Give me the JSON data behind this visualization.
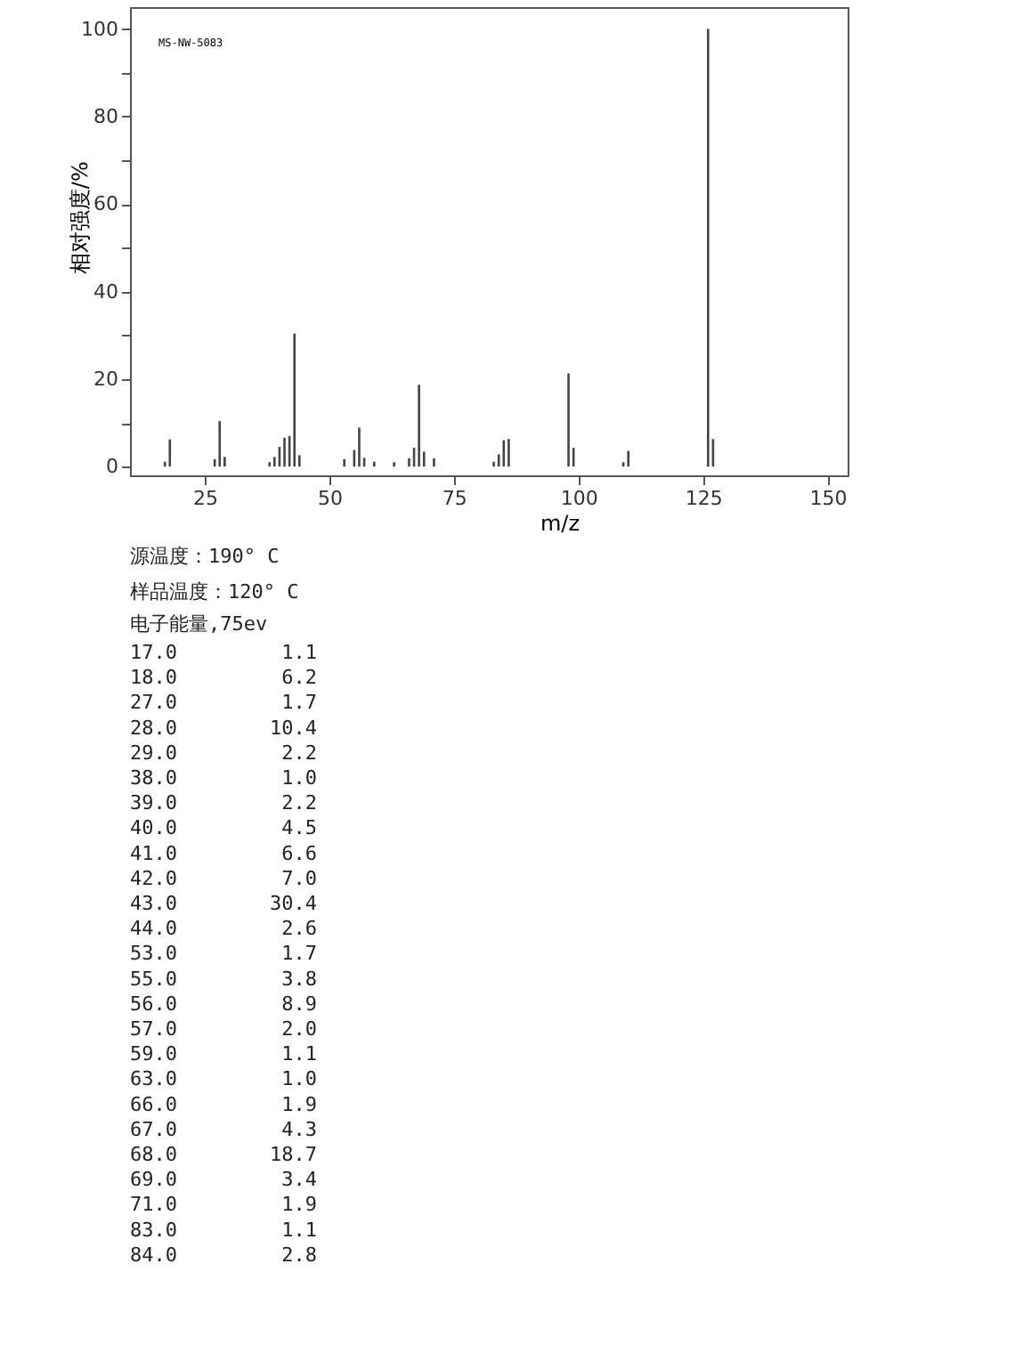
{
  "chart_data": {
    "type": "bar",
    "xlabel": "m/z",
    "ylabel": "相对强度/%",
    "x": [
      17,
      18,
      27,
      28,
      29,
      38,
      39,
      40,
      41,
      42,
      43,
      44,
      53,
      55,
      56,
      57,
      59,
      63,
      66,
      67,
      68,
      69,
      71,
      83,
      84,
      85,
      86,
      98,
      99,
      109,
      110,
      126,
      127
    ],
    "values": [
      1.1,
      6.2,
      1.7,
      10.4,
      2.2,
      1.0,
      2.2,
      4.5,
      6.6,
      7.0,
      30.4,
      2.6,
      1.7,
      3.8,
      8.9,
      2.0,
      1.1,
      1.0,
      1.9,
      4.3,
      18.7,
      3.4,
      1.9,
      1.1,
      2.8,
      6,
      6.3,
      21.3,
      4.3,
      1,
      3.6,
      100,
      6.3
    ],
    "color": "#444444",
    "xlim": [
      10,
      154
    ],
    "xticks": [
      25,
      50,
      75,
      100,
      125,
      150
    ],
    "ylim": [
      -2,
      105
    ],
    "yticks": [
      0,
      {
        "value": 10,
        "label": null
      },
      20,
      {
        "value": 30,
        "label": null
      },
      40,
      {
        "value": 50,
        "label": null
      },
      60,
      {
        "value": 70,
        "label": null
      },
      80,
      {
        "value": 90,
        "label": null
      },
      100
    ],
    "grid": false,
    "annotations": [
      "MS-NW-5083",
      "源温度：190° C",
      "样品温度：120° C",
      "电子能量,75ev",
      "17.0 1.1",
      "18.0 6.2",
      "27.0 1.7",
      "28.0 10.4",
      "29.0 2.2",
      "38.0 1.0",
      "39.0 2.2",
      "40.0 4.5",
      "41.0 6.6",
      "42.0 7.0",
      "43.0 30.4",
      "44.0 2.6",
      "53.0 1.7",
      "55.0 3.8",
      "56.0 8.9",
      "57.0 2.0",
      "59.0 1.1",
      "63.0 1.0",
      "66.0 1.9",
      "67.0 4.3",
      "68.0 18.7",
      "69.0 3.4",
      "71.0 1.9",
      "83.0 1.1",
      "84.0 2.8"
    ]
  }
}
